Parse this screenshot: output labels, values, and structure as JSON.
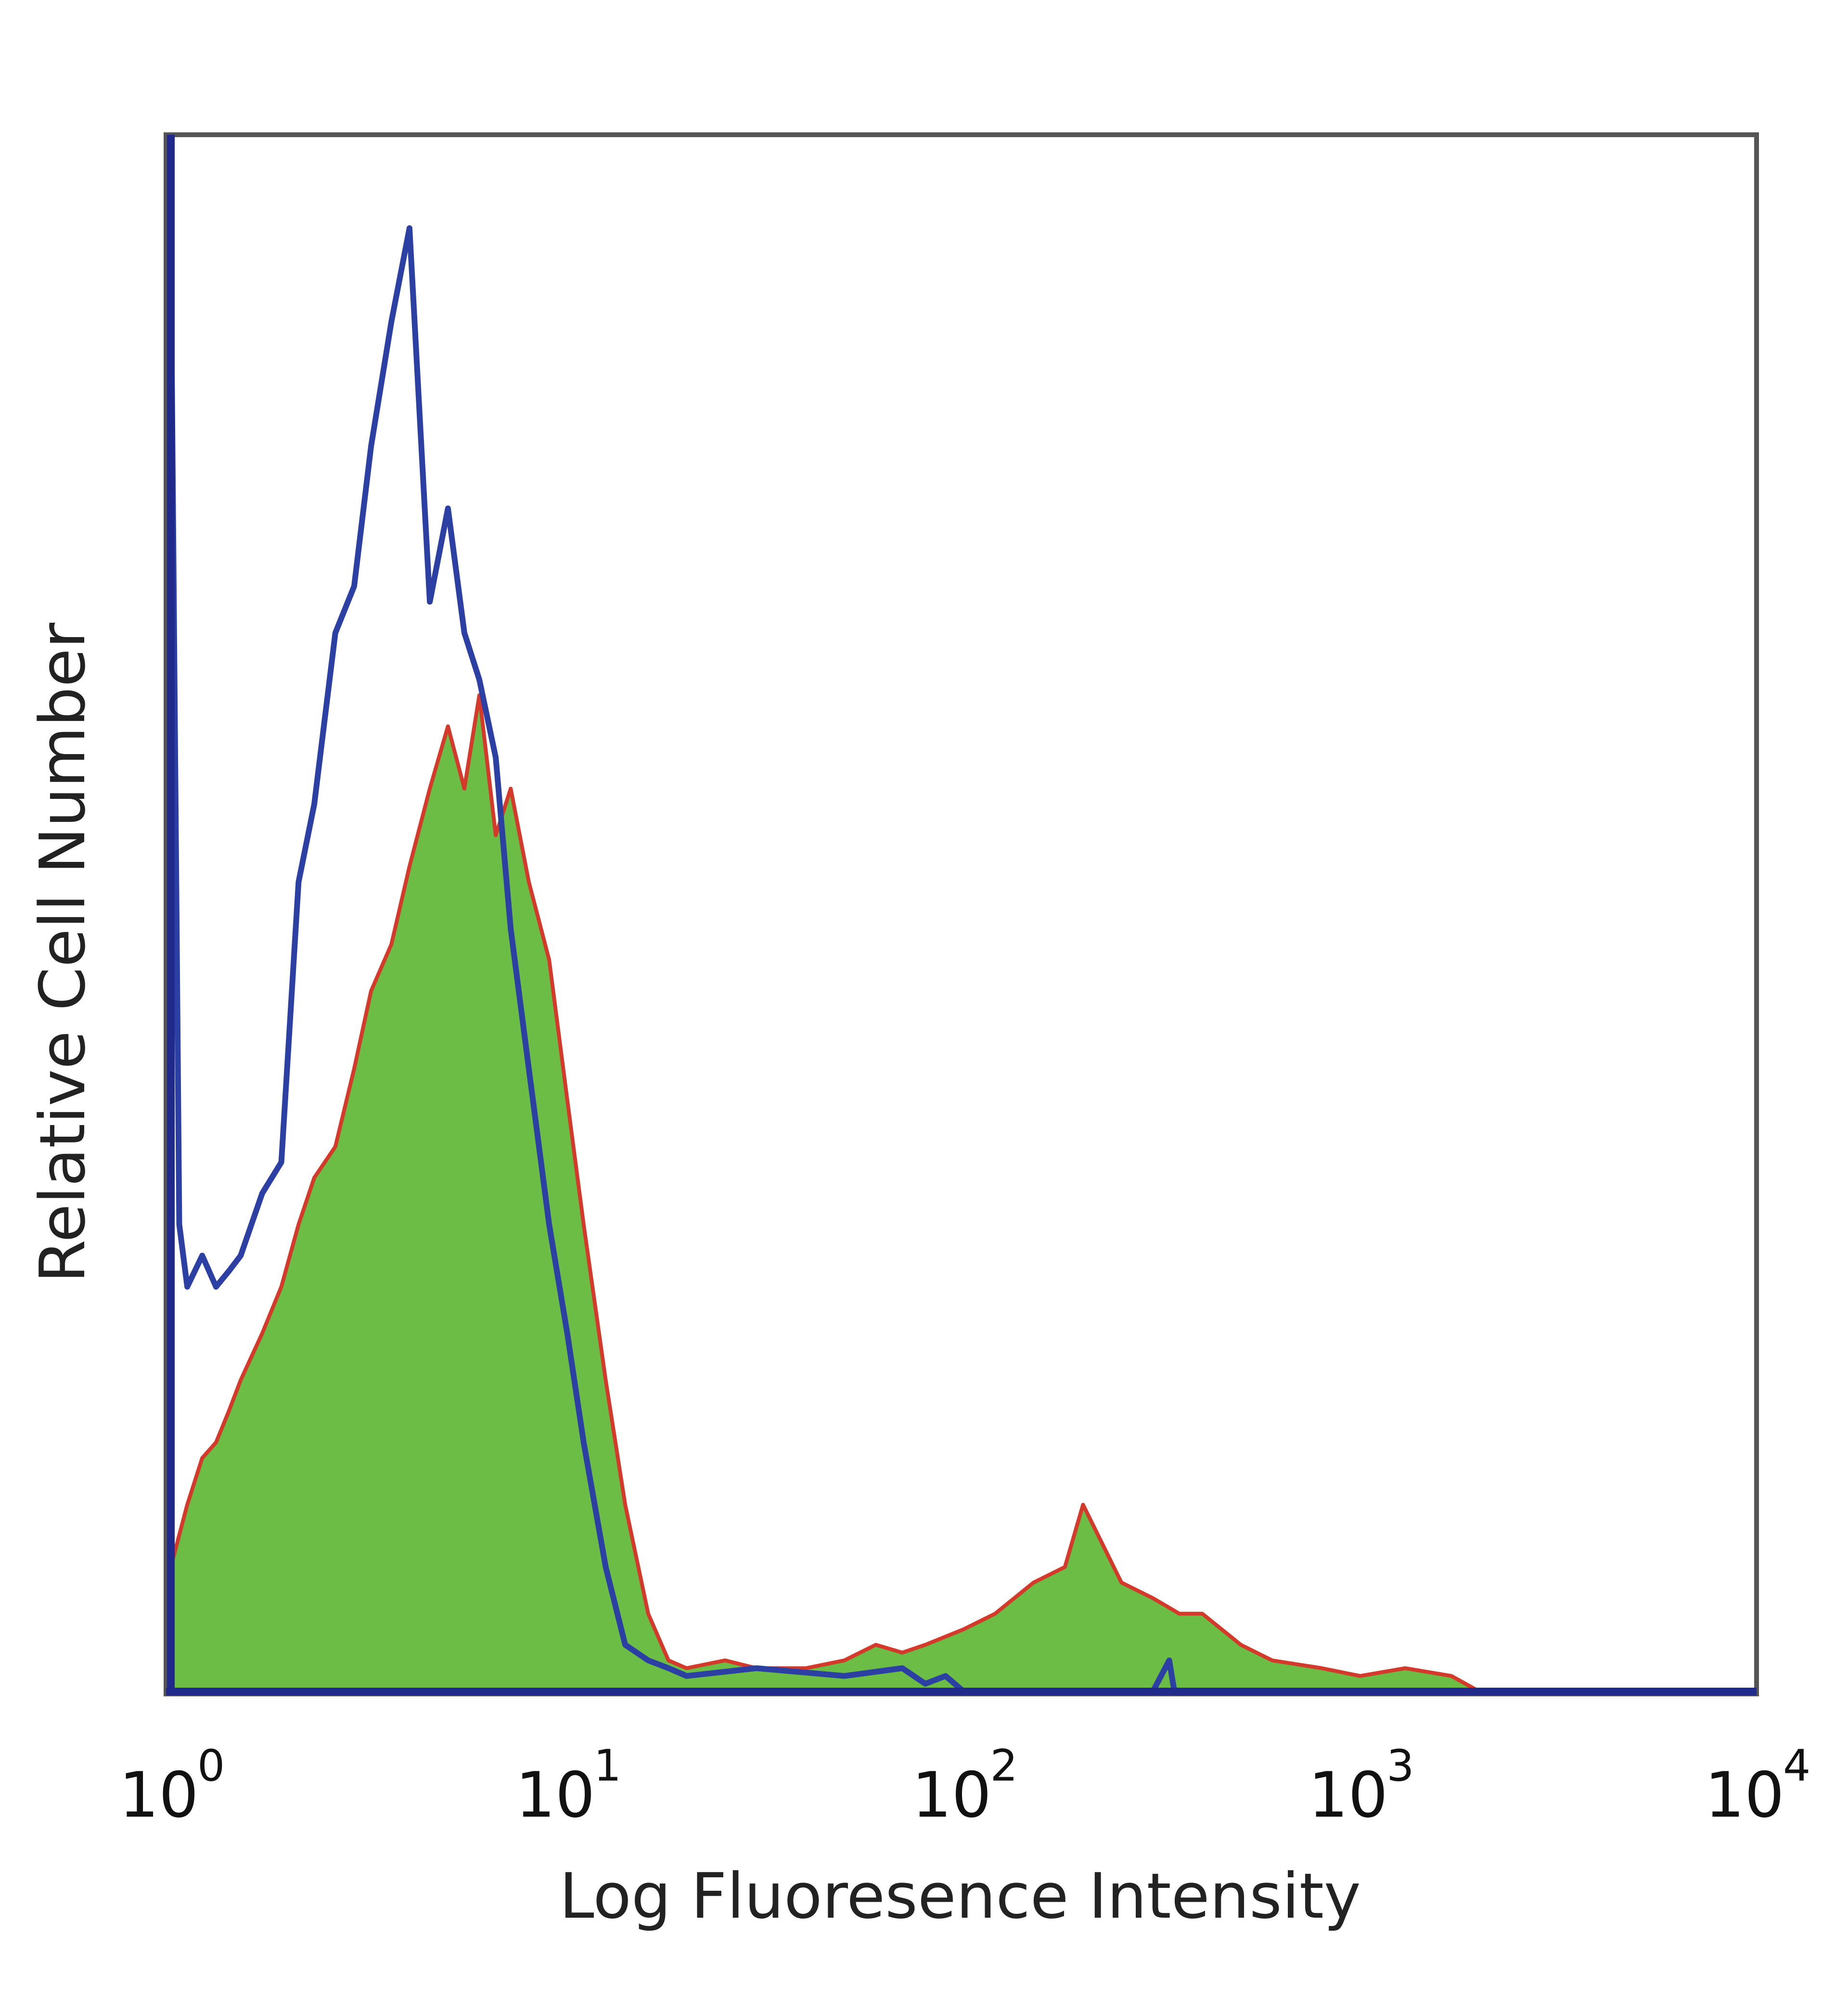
{
  "chart_data": {
    "type": "area",
    "xscale": "log",
    "xlim": [
      1,
      10000
    ],
    "ylim": [
      0,
      100
    ],
    "xlabel": "Log Fluoresence Intensity",
    "ylabel": "Relative Cell Number",
    "xticks": [
      {
        "base": "10",
        "exp": "0",
        "value": 1
      },
      {
        "base": "10",
        "exp": "1",
        "value": 10
      },
      {
        "base": "10",
        "exp": "2",
        "value": 100
      },
      {
        "base": "10",
        "exp": "3",
        "value": 1000
      },
      {
        "base": "10",
        "exp": "4",
        "value": 10000
      }
    ],
    "grid": false,
    "legend": "none",
    "series": [
      {
        "style": "filled",
        "color": "#6cbd45",
        "outline": "#d33a2c",
        "x": [
          1,
          1.1,
          1.2,
          1.3,
          1.4,
          1.5,
          1.7,
          1.9,
          2.1,
          2.3,
          2.6,
          2.9,
          3.2,
          3.6,
          4.0,
          4.5,
          5.0,
          5.5,
          6.0,
          6.6,
          7.2,
          8.0,
          9.0,
          10,
          11,
          12.5,
          14,
          16,
          18,
          20,
          25,
          30,
          40,
          50,
          60,
          70,
          80,
          100,
          120,
          150,
          180,
          200,
          250,
          300,
          350,
          400,
          500,
          600,
          800,
          1000,
          1300,
          1700,
          2000
        ],
        "y": [
          8,
          12,
          15,
          16,
          18,
          20,
          23,
          26,
          30,
          33,
          35,
          40,
          45,
          48,
          53,
          58,
          62,
          58,
          64,
          55,
          58,
          52,
          47,
          38,
          30,
          20,
          12,
          5,
          2,
          1.5,
          2,
          1.5,
          1.5,
          2,
          3,
          2.5,
          3,
          4,
          5,
          7,
          8,
          12,
          7,
          6,
          5,
          5,
          3,
          2,
          1.5,
          1,
          1.5,
          1,
          0
        ]
      },
      {
        "style": "line",
        "color": "#2c3fa3",
        "x": [
          1,
          1.05,
          1.1,
          1.2,
          1.3,
          1.4,
          1.5,
          1.7,
          1.9,
          2.1,
          2.3,
          2.6,
          2.9,
          3.2,
          3.6,
          4.0,
          4.5,
          5.0,
          5.5,
          6.0,
          6.6,
          7.2,
          8.0,
          9.0,
          10,
          11,
          12.5,
          14,
          16,
          18,
          20,
          30,
          50,
          70,
          80,
          90,
          100,
          200,
          300,
          330,
          340,
          500,
          1000,
          2000,
          10000
        ],
        "y": [
          92,
          30,
          26,
          28,
          26,
          27,
          28,
          32,
          34,
          52,
          57,
          68,
          71,
          80,
          88,
          94,
          70,
          76,
          68,
          65,
          60,
          49,
          40,
          30,
          23,
          16,
          8,
          3,
          2,
          1.5,
          1,
          1.5,
          1,
          1.5,
          0.5,
          1,
          0,
          0,
          0,
          2,
          0,
          0,
          0,
          0,
          0
        ]
      }
    ]
  }
}
